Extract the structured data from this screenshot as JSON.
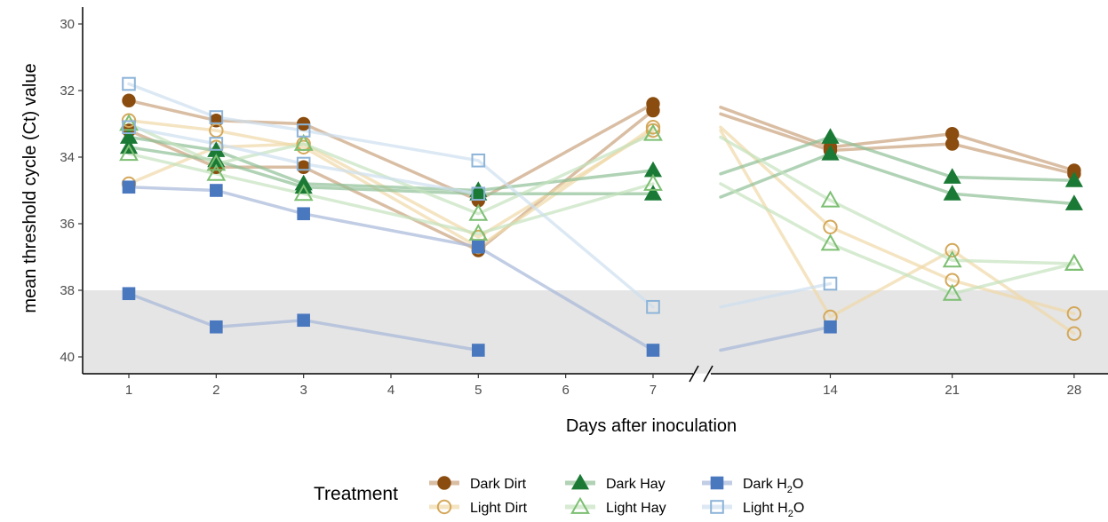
{
  "chart_data": {
    "type": "line",
    "xlabel": "Days after inoculation",
    "ylabel": "mean threshold cycle (Ct) value",
    "ylim": [
      30,
      40.5
    ],
    "y_reversed": true,
    "y_ticks": [
      "30",
      "32",
      "34",
      "36",
      "38",
      "40"
    ],
    "x_ticks": [
      "1",
      "2",
      "3",
      "4",
      "5",
      "6",
      "7",
      "14",
      "21",
      "28"
    ],
    "x_axis_break": "between 7 and 14",
    "shaded_band": {
      "y_from": 38,
      "y_to": 40.5,
      "color": "#e5e5e5"
    },
    "grid": false,
    "legend": {
      "title": "Treatment",
      "placement": "bottom"
    },
    "series": [
      {
        "name": "Dark Dirt",
        "name_main": "Dark Dirt",
        "name_sub": "",
        "name_tail": "",
        "color": "#8b4d0f",
        "line_color": "#c9a37e",
        "marker": "circle-filled",
        "line_opacity": 0.7,
        "replicates": [
          [
            [
              1,
              32.3
            ],
            [
              2,
              32.9
            ],
            [
              3,
              33.0
            ],
            [
              5,
              35.3
            ],
            [
              7,
              32.4
            ],
            [
              7.7,
              32.5
            ],
            [
              14,
              33.7
            ],
            [
              21,
              33.3
            ],
            [
              28,
              34.4
            ]
          ],
          [
            [
              1,
              33.2
            ],
            [
              2,
              34.3
            ],
            [
              3,
              34.3
            ],
            [
              5,
              36.8
            ],
            [
              7,
              32.6
            ],
            [
              7.7,
              32.7
            ],
            [
              14,
              33.8
            ],
            [
              21,
              33.6
            ],
            [
              28,
              34.5
            ]
          ]
        ]
      },
      {
        "name": "Light Dirt",
        "name_main": "Light Dirt",
        "name_sub": "",
        "name_tail": "",
        "color": "#d4a85a",
        "line_color": "#f0d9a8",
        "marker": "circle-open",
        "line_opacity": 0.7,
        "replicates": [
          [
            [
              1,
              32.9
            ],
            [
              2,
              33.2
            ],
            [
              3,
              33.7
            ],
            [
              5,
              36.7
            ],
            [
              7,
              33.1
            ],
            [
              7.7,
              33.1
            ],
            [
              14,
              36.1
            ],
            [
              21,
              37.7
            ],
            [
              28,
              38.7
            ]
          ],
          [
            [
              1,
              34.8
            ],
            [
              2,
              33.7
            ],
            [
              3,
              33.6
            ],
            [
              5,
              36.4
            ],
            [
              7,
              33.2
            ],
            [
              7.7,
              33.2
            ],
            [
              14,
              38.8
            ],
            [
              21,
              36.8
            ],
            [
              28,
              39.3
            ]
          ]
        ]
      },
      {
        "name": "Dark Hay",
        "name_main": "Dark Hay",
        "name_sub": "",
        "name_tail": "",
        "color": "#1a7a35",
        "line_color": "#8fbf95",
        "marker": "triangle-filled",
        "line_opacity": 0.7,
        "replicates": [
          [
            [
              1,
              33.4
            ],
            [
              2,
              33.8
            ],
            [
              3,
              34.8
            ],
            [
              5,
              35.0
            ],
            [
              7,
              34.4
            ],
            [
              7.7,
              34.5
            ],
            [
              14,
              33.4
            ],
            [
              21,
              34.6
            ],
            [
              28,
              34.7
            ]
          ],
          [
            [
              1,
              33.7
            ],
            [
              2,
              34.1
            ],
            [
              3,
              34.9
            ],
            [
              5,
              35.1
            ],
            [
              7,
              35.1
            ],
            [
              7.7,
              35.2
            ],
            [
              14,
              33.9
            ],
            [
              21,
              35.1
            ],
            [
              28,
              35.4
            ]
          ]
        ]
      },
      {
        "name": "Light Hay",
        "name_main": "Light Hay",
        "name_sub": "",
        "name_tail": "",
        "color": "#7cbf72",
        "line_color": "#c5e3bd",
        "marker": "triangle-open",
        "line_opacity": 0.7,
        "replicates": [
          [
            [
              1,
              33.0
            ],
            [
              2,
              34.2
            ],
            [
              3,
              33.6
            ],
            [
              5,
              35.7
            ],
            [
              7,
              33.3
            ],
            [
              7.7,
              33.4
            ],
            [
              14,
              35.3
            ],
            [
              21,
              37.1
            ],
            [
              28,
              37.2
            ]
          ],
          [
            [
              1,
              33.9
            ],
            [
              2,
              34.5
            ],
            [
              3,
              35.1
            ],
            [
              5,
              36.3
            ],
            [
              7,
              34.8
            ],
            [
              7.7,
              34.8
            ],
            [
              14,
              36.6
            ],
            [
              21,
              38.1
            ],
            [
              28,
              37.2
            ]
          ]
        ]
      },
      {
        "name": "Dark H2O",
        "name_main": "Dark H",
        "name_sub": "2",
        "name_tail": "O",
        "color": "#4a78bf",
        "line_color": "#a7b8d8",
        "marker": "square-filled",
        "line_opacity": 0.7,
        "replicates": [
          [
            [
              1,
              34.9
            ],
            [
              2,
              35.0
            ],
            [
              3,
              35.7
            ],
            [
              5,
              36.7
            ],
            [
              7,
              39.8
            ],
            [
              7.7,
              39.8
            ],
            [
              14,
              39.1
            ]
          ],
          [
            [
              1,
              38.1
            ],
            [
              2,
              39.1
            ],
            [
              3,
              38.9
            ],
            [
              5,
              39.8
            ]
          ]
        ]
      },
      {
        "name": "Light H2O",
        "name_main": "Light H",
        "name_sub": "2",
        "name_tail": "O",
        "color": "#8db4d8",
        "line_color": "#cde0f0",
        "marker": "square-open",
        "line_opacity": 0.7,
        "replicates": [
          [
            [
              1,
              31.8
            ],
            [
              2,
              32.8
            ],
            [
              3,
              33.2
            ],
            [
              5,
              34.1
            ],
            [
              7,
              38.5
            ],
            [
              7.7,
              38.5
            ],
            [
              14,
              37.8
            ]
          ],
          [
            [
              1,
              33.1
            ],
            [
              2,
              33.6
            ],
            [
              3,
              34.2
            ],
            [
              5,
              35.1
            ]
          ]
        ]
      }
    ]
  }
}
